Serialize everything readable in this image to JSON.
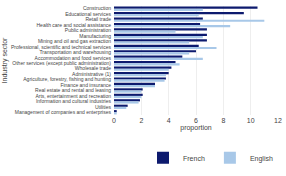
{
  "chart_data": {
    "type": "bar",
    "orientation": "horizontal",
    "categories": [
      "Construction",
      "Educational services",
      "Retail trade",
      "Health care and social assistance",
      "Public administration",
      "Manufacturing",
      "Mining and oil and gas extraction",
      "Professional, scientific and technical services",
      "Transportation and warehousing",
      "Accommodation and food services",
      "Other services (except public administration)",
      "Wholesale trade",
      "Administrative (1)",
      "Agriculture, forestry, fishing and hunting",
      "Finance and insurance",
      "Real estate and rental and leasing",
      "Arts, entertainment and recreation",
      "Information and cultural industries",
      "Utilities",
      "Management of companies and enterprises"
    ],
    "series": [
      {
        "name": "French",
        "color": "#0d1a6e",
        "values": [
          10.5,
          9.5,
          6.5,
          6.3,
          6.8,
          6.8,
          6.8,
          6.2,
          6.0,
          5.0,
          4.5,
          4.2,
          4.0,
          3.8,
          3.0,
          2.1,
          2.1,
          1.9,
          1.0,
          0.2
        ]
      },
      {
        "name": "English",
        "color": "#a8c8e8",
        "values": [
          6.5,
          6.2,
          11.0,
          8.5,
          4.5,
          6.5,
          5.5,
          7.5,
          5.5,
          6.5,
          4.8,
          4.0,
          3.8,
          3.7,
          3.0,
          2.0,
          2.0,
          1.8,
          0.9,
          0.2
        ]
      }
    ],
    "xlabel": "proportion",
    "ylabel": "Industry sector",
    "xlim": [
      0,
      12
    ],
    "xticks": [
      0,
      2,
      4,
      6,
      8,
      10,
      12
    ],
    "grid": true,
    "legend": "lower right"
  }
}
